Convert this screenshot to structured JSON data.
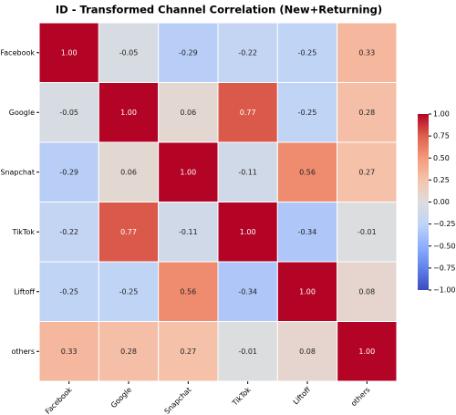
{
  "chart_data": {
    "type": "heatmap",
    "title": "ID - Transformed Channel Correlation (New+Returning)",
    "x_categories": [
      "Facebook",
      "Google",
      "Snapchat",
      "TikTok",
      "Liftoff",
      "others"
    ],
    "y_categories": [
      "Facebook",
      "Google",
      "Snapchat",
      "TikTok",
      "Liftoff",
      "others"
    ],
    "values": [
      [
        1.0,
        -0.05,
        -0.29,
        -0.22,
        -0.25,
        0.33
      ],
      [
        -0.05,
        1.0,
        0.06,
        0.77,
        -0.25,
        0.28
      ],
      [
        -0.29,
        0.06,
        1.0,
        -0.11,
        0.56,
        0.27
      ],
      [
        -0.22,
        0.77,
        -0.11,
        1.0,
        -0.34,
        -0.01
      ],
      [
        -0.25,
        -0.25,
        0.56,
        -0.34,
        1.0,
        0.08
      ],
      [
        0.33,
        0.28,
        0.27,
        -0.01,
        0.08,
        1.0
      ]
    ],
    "value_labels": [
      [
        "1.00",
        "-0.05",
        "-0.29",
        "-0.22",
        "-0.25",
        "0.33"
      ],
      [
        "-0.05",
        "1.00",
        "0.06",
        "0.77",
        "-0.25",
        "0.28"
      ],
      [
        "-0.29",
        "0.06",
        "1.00",
        "-0.11",
        "0.56",
        "0.27"
      ],
      [
        "-0.22",
        "0.77",
        "-0.11",
        "1.00",
        "-0.34",
        "-0.01"
      ],
      [
        "-0.25",
        "-0.25",
        "0.56",
        "-0.34",
        "1.00",
        "0.08"
      ],
      [
        "0.33",
        "0.28",
        "0.27",
        "-0.01",
        "0.08",
        "1.00"
      ]
    ],
    "colormap": "coolwarm",
    "clim": [
      -1,
      1
    ],
    "cticks": [
      {
        "value": 1,
        "label": "1.00"
      },
      {
        "value": 0.75,
        "label": "0.75"
      },
      {
        "value": 0.5,
        "label": "0.50"
      },
      {
        "value": 0.25,
        "label": "0.25"
      },
      {
        "value": 0,
        "label": "0.00"
      },
      {
        "value": -0.25,
        "label": "−0.25"
      },
      {
        "value": -0.5,
        "label": "−0.50"
      },
      {
        "value": -0.75,
        "label": "−0.75"
      },
      {
        "value": -1,
        "label": "−1.00"
      }
    ]
  }
}
